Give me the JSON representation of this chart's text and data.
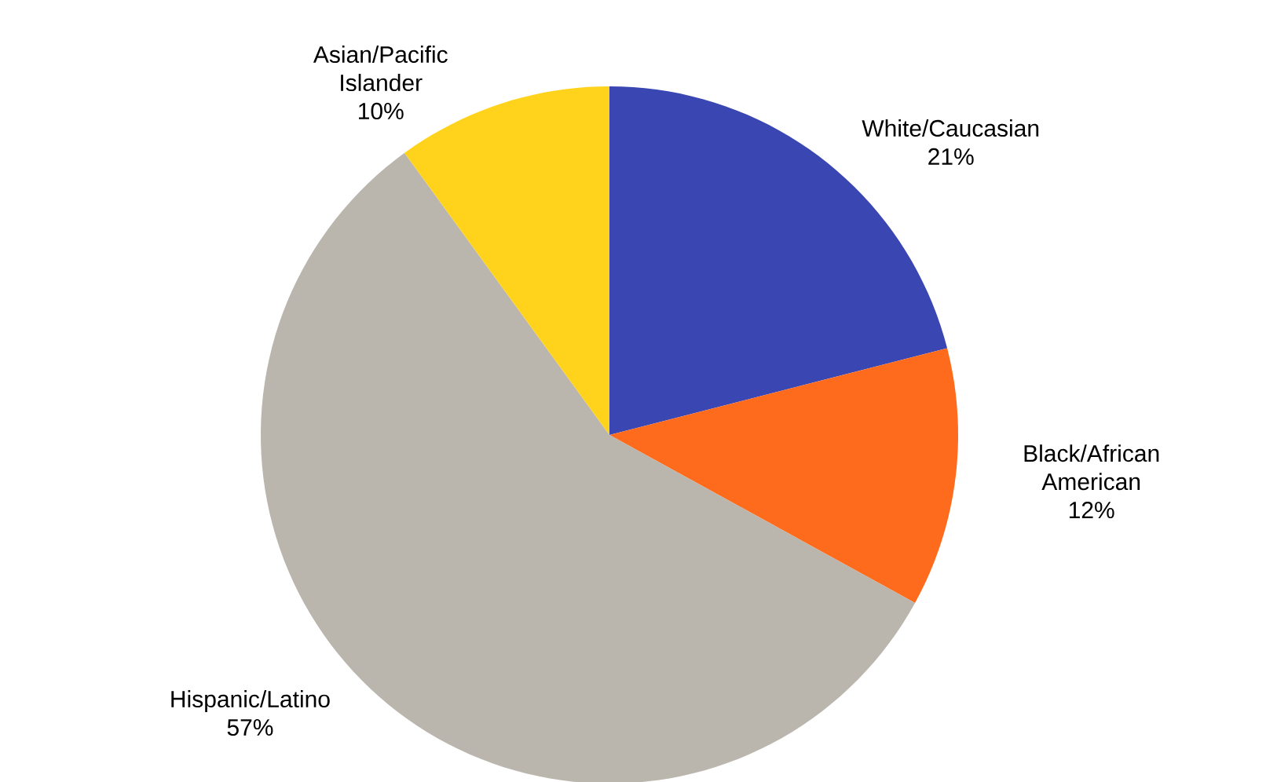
{
  "chart_data": {
    "type": "pie",
    "categories": [
      "White/Caucasian",
      "Black/African American",
      "Hispanic/Latino",
      "Asian/Pacific Islander"
    ],
    "values": [
      21,
      12,
      57,
      10
    ],
    "value_labels": [
      "21%",
      "12%",
      "57%",
      "10%"
    ],
    "colors": [
      "#3a46b2",
      "#ff6b1c",
      "#bab6ad",
      "#ffd21c"
    ]
  }
}
